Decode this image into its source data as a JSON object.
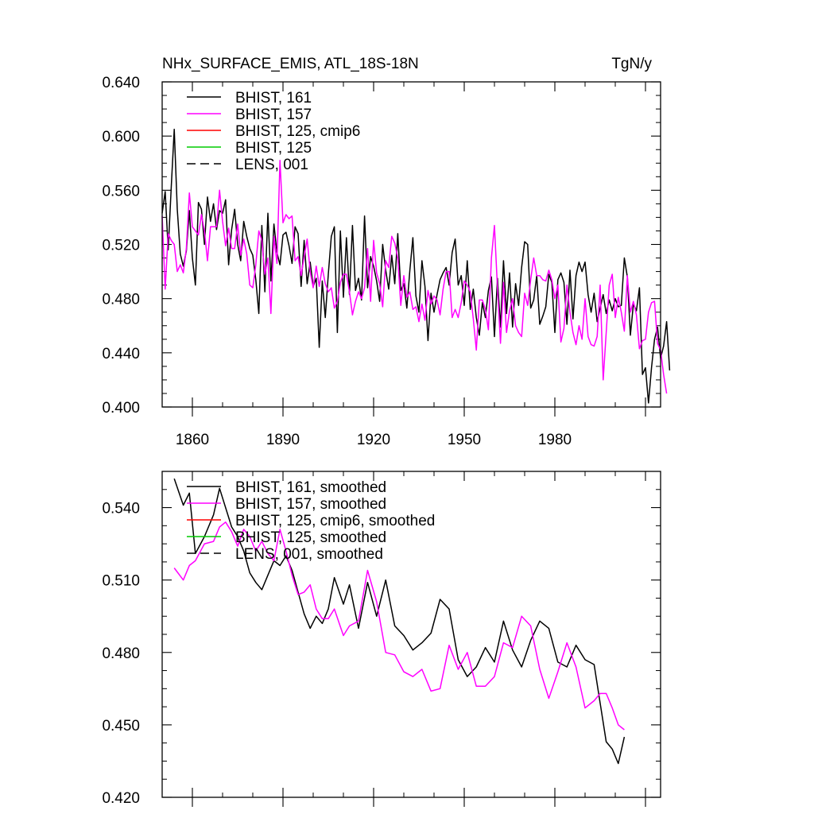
{
  "chart_data": [
    {
      "type": "line",
      "title": "NHx_SURFACE_EMIS, ATL_18S-18N",
      "units": "TgN/y",
      "xlim": [
        1850,
        2015
      ],
      "ylim": [
        0.4,
        0.64
      ],
      "x_ticks": [
        1860,
        1890,
        1920,
        1950,
        1980
      ],
      "y_ticks": [
        0.4,
        0.44,
        0.48,
        0.52,
        0.56,
        0.6,
        0.64
      ],
      "y_tick_labels": [
        "0.400",
        "0.440",
        "0.480",
        "0.520",
        "0.560",
        "0.600",
        "0.640"
      ],
      "legend_position": "top-left",
      "legend": [
        {
          "label": "BHIST, 161",
          "color": "#000000",
          "dash": "solid"
        },
        {
          "label": "BHIST, 157",
          "color": "#ff00ff",
          "dash": "solid"
        },
        {
          "label": "BHIST, 125, cmip6",
          "color": "#ff0000",
          "dash": "solid"
        },
        {
          "label": "BHIST, 125",
          "color": "#00cc00",
          "dash": "solid"
        },
        {
          "label": "LENS, 001",
          "color": "#000000",
          "dash": "dashed"
        }
      ],
      "series": [
        {
          "name": "BHIST, 161",
          "color": "#000000",
          "x_start": 1850,
          "values": [
            0.543,
            0.559,
            0.516,
            0.562,
            0.605,
            0.546,
            0.513,
            0.504,
            0.515,
            0.545,
            0.51,
            0.49,
            0.551,
            0.546,
            0.52,
            0.555,
            0.537,
            0.55,
            0.531,
            0.545,
            0.543,
            0.553,
            0.505,
            0.531,
            0.546,
            0.52,
            0.508,
            0.537,
            0.526,
            0.517,
            0.512,
            0.494,
            0.469,
            0.534,
            0.485,
            0.543,
            0.493,
            0.535,
            0.514,
            0.505,
            0.527,
            0.529,
            0.519,
            0.506,
            0.533,
            0.528,
            0.489,
            0.523,
            0.491,
            0.507,
            0.489,
            0.495,
            0.444,
            0.493,
            0.466,
            0.498,
            0.526,
            0.533,
            0.455,
            0.53,
            0.481,
            0.525,
            0.483,
            0.534,
            0.486,
            0.495,
            0.479,
            0.541,
            0.488,
            0.511,
            0.504,
            0.493,
            0.478,
            0.52,
            0.501,
            0.487,
            0.512,
            0.491,
            0.528,
            0.486,
            0.491,
            0.473,
            0.501,
            0.525,
            0.482,
            0.47,
            0.508,
            0.489,
            0.449,
            0.484,
            0.47,
            0.483,
            0.494,
            0.499,
            0.503,
            0.49,
            0.514,
            0.524,
            0.49,
            0.497,
            0.475,
            0.508,
            0.472,
            0.487,
            0.466,
            0.453,
            0.477,
            0.466,
            0.486,
            0.496,
            0.452,
            0.495,
            0.459,
            0.508,
            0.469,
            0.499,
            0.459,
            0.491,
            0.475,
            0.503,
            0.522,
            0.52,
            0.473,
            0.479,
            0.497,
            0.461,
            0.467,
            0.474,
            0.498,
            0.492,
            0.455,
            0.494,
            0.499,
            0.492,
            0.461,
            0.501,
            0.465,
            0.497,
            0.507,
            0.5,
            0.507,
            0.483,
            0.47,
            0.484,
            0.463,
            0.473,
            0.483,
            0.469,
            0.479,
            0.471,
            0.48,
            0.474,
            0.475,
            0.51,
            0.496,
            0.453,
            0.476,
            0.471,
            0.488,
            0.424,
            0.429,
            0.403,
            0.429,
            0.45,
            0.459,
            0.436,
            0.445,
            0.463,
            0.427
          ]
        },
        {
          "name": "BHIST, 157",
          "color": "#ff00ff",
          "x_start": 1850,
          "values": [
            0.541,
            0.487,
            0.528,
            0.523,
            0.52,
            0.5,
            0.505,
            0.499,
            0.517,
            0.558,
            0.533,
            0.53,
            0.527,
            0.542,
            0.53,
            0.508,
            0.533,
            0.533,
            0.533,
            0.56,
            0.537,
            0.519,
            0.532,
            0.517,
            0.517,
            0.535,
            0.512,
            0.524,
            0.513,
            0.49,
            0.488,
            0.505,
            0.53,
            0.523,
            0.498,
            0.51,
            0.469,
            0.526,
            0.506,
            0.582,
            0.536,
            0.542,
            0.539,
            0.541,
            0.508,
            0.511,
            0.497,
            0.511,
            0.524,
            0.5,
            0.488,
            0.504,
            0.489,
            0.503,
            0.491,
            0.485,
            0.488,
            0.473,
            0.478,
            0.492,
            0.498,
            0.498,
            0.485,
            0.468,
            0.478,
            0.485,
            0.48,
            0.488,
            0.517,
            0.478,
            0.523,
            0.499,
            0.491,
            0.474,
            0.508,
            0.503,
            0.526,
            0.521,
            0.51,
            0.475,
            0.497,
            0.481,
            0.485,
            0.472,
            0.474,
            0.463,
            0.476,
            0.464,
            0.486,
            0.476,
            0.482,
            0.479,
            0.468,
            0.487,
            0.5,
            0.5,
            0.466,
            0.472,
            0.466,
            0.477,
            0.493,
            0.49,
            0.485,
            0.465,
            0.442,
            0.479,
            0.479,
            0.472,
            0.457,
            0.51,
            0.534,
            0.488,
            0.447,
            0.492,
            0.455,
            0.471,
            0.48,
            0.46,
            0.455,
            0.452,
            0.484,
            0.475,
            0.494,
            0.51,
            0.497,
            0.497,
            0.494,
            0.493,
            0.501,
            0.494,
            0.48,
            0.49,
            0.448,
            0.458,
            0.49,
            0.47,
            0.455,
            0.446,
            0.46,
            0.45,
            0.48,
            0.452,
            0.446,
            0.445,
            0.452,
            0.49,
            0.42,
            0.455,
            0.49,
            0.498,
            0.466,
            0.481,
            0.47,
            0.456,
            0.497,
            0.47,
            0.478,
            0.468,
            0.443,
            0.449,
            0.45,
            0.47,
            0.477,
            0.478,
            0.447,
            0.442,
            0.424,
            0.41
          ]
        }
      ]
    },
    {
      "type": "line",
      "title": "",
      "xlim": [
        1850,
        2015
      ],
      "ylim": [
        0.42,
        0.555
      ],
      "y_ticks": [
        0.42,
        0.45,
        0.48,
        0.51,
        0.54
      ],
      "y_tick_labels": [
        "0.420",
        "0.450",
        "0.480",
        "0.510",
        "0.540"
      ],
      "legend_position": "top-left",
      "legend": [
        {
          "label": "BHIST, 161, smoothed",
          "color": "#000000",
          "dash": "solid"
        },
        {
          "label": "BHIST, 157, smoothed",
          "color": "#ff00ff",
          "dash": "solid"
        },
        {
          "label": "BHIST, 125, cmip6, smoothed",
          "color": "#ff0000",
          "dash": "solid"
        },
        {
          "label": "BHIST, 125, smoothed",
          "color": "#00cc00",
          "dash": "solid"
        },
        {
          "label": "LENS, 001, smoothed",
          "color": "#000000",
          "dash": "dashed"
        }
      ],
      "series": [
        {
          "name": "BHIST, 161, smoothed",
          "color": "#000000",
          "x": [
            1854,
            1857,
            1859,
            1861,
            1864,
            1867,
            1869,
            1871,
            1873,
            1875,
            1877,
            1879,
            1881,
            1883,
            1885,
            1887,
            1889,
            1891,
            1893,
            1895,
            1897,
            1899,
            1901,
            1903,
            1905,
            1907,
            1910,
            1912,
            1915,
            1918,
            1921,
            1924,
            1927,
            1930,
            1933,
            1936,
            1939,
            1942,
            1945,
            1948,
            1951,
            1954,
            1957,
            1960,
            1963,
            1966,
            1969,
            1972,
            1975,
            1978,
            1981,
            1984,
            1987,
            1990,
            1993,
            1995,
            1997,
            1999,
            2001,
            2003
          ],
          "values": [
            0.552,
            0.541,
            0.546,
            0.521,
            0.528,
            0.537,
            0.548,
            0.54,
            0.532,
            0.528,
            0.522,
            0.513,
            0.509,
            0.506,
            0.512,
            0.518,
            0.516,
            0.52,
            0.514,
            0.505,
            0.496,
            0.49,
            0.495,
            0.492,
            0.498,
            0.511,
            0.5,
            0.508,
            0.49,
            0.509,
            0.495,
            0.51,
            0.491,
            0.487,
            0.481,
            0.484,
            0.488,
            0.502,
            0.498,
            0.477,
            0.47,
            0.474,
            0.482,
            0.476,
            0.493,
            0.481,
            0.474,
            0.485,
            0.493,
            0.49,
            0.476,
            0.474,
            0.483,
            0.477,
            0.475,
            0.459,
            0.443,
            0.44,
            0.434,
            0.445
          ]
        },
        {
          "name": "BHIST, 157, smoothed",
          "color": "#ff00ff",
          "x": [
            1854,
            1857,
            1859,
            1861,
            1864,
            1867,
            1869,
            1871,
            1873,
            1875,
            1877,
            1879,
            1881,
            1883,
            1885,
            1887,
            1889,
            1891,
            1893,
            1895,
            1897,
            1899,
            1901,
            1903,
            1905,
            1907,
            1910,
            1912,
            1915,
            1918,
            1921,
            1924,
            1927,
            1930,
            1933,
            1936,
            1939,
            1942,
            1945,
            1948,
            1951,
            1954,
            1957,
            1960,
            1963,
            1966,
            1969,
            1972,
            1975,
            1978,
            1981,
            1984,
            1987,
            1990,
            1993,
            1995,
            1997,
            1999,
            2001,
            2003
          ],
          "values": [
            0.515,
            0.51,
            0.516,
            0.518,
            0.525,
            0.526,
            0.532,
            0.534,
            0.53,
            0.524,
            0.531,
            0.528,
            0.522,
            0.526,
            0.521,
            0.518,
            0.531,
            0.522,
            0.512,
            0.504,
            0.505,
            0.508,
            0.498,
            0.494,
            0.494,
            0.498,
            0.487,
            0.491,
            0.493,
            0.514,
            0.501,
            0.48,
            0.479,
            0.472,
            0.47,
            0.473,
            0.464,
            0.465,
            0.483,
            0.473,
            0.48,
            0.466,
            0.466,
            0.47,
            0.484,
            0.482,
            0.495,
            0.491,
            0.473,
            0.461,
            0.472,
            0.484,
            0.474,
            0.457,
            0.46,
            0.463,
            0.463,
            0.457,
            0.45,
            0.448
          ]
        }
      ]
    }
  ]
}
